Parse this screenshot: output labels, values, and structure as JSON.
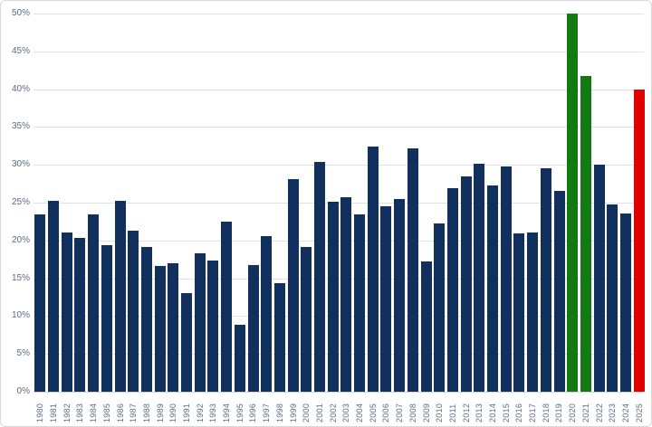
{
  "chart": {
    "background_color": "#ffffff",
    "border_color": "#d8d8d8",
    "grid_color": "#e2e2e2",
    "axis_label_color": "#5a6b7c",
    "bar_default_color": "#12305d",
    "highlight_color_positive": "#137a13",
    "highlight_color_negative": "#df0000"
  },
  "chart_data": {
    "type": "bar",
    "title": "",
    "xlabel": "",
    "ylabel": "",
    "ylim": [
      0,
      50
    ],
    "grid": true,
    "legend": false,
    "ytick_labels": [
      "0%",
      "5%",
      "10%",
      "15%",
      "20%",
      "25%",
      "30%",
      "35%",
      "40%",
      "45%",
      "50%"
    ],
    "categories": [
      "1980",
      "1981",
      "1982",
      "1983",
      "1984",
      "1985",
      "1986",
      "1987",
      "1988",
      "1989",
      "1990",
      "1991",
      "1992",
      "1993",
      "1994",
      "1995",
      "1996",
      "1997",
      "1998",
      "1999",
      "2000",
      "2001",
      "2002",
      "2003",
      "2004",
      "2005",
      "2006",
      "2007",
      "2008",
      "2009",
      "2010",
      "2011",
      "2012",
      "2013",
      "2014",
      "2015",
      "2016",
      "2017",
      "2018",
      "2019",
      "2020",
      "2021",
      "2022",
      "2023",
      "2024",
      "2025"
    ],
    "values": [
      23.4,
      25.3,
      21.0,
      20.4,
      23.4,
      19.4,
      25.2,
      21.3,
      19.1,
      16.6,
      17.0,
      13.0,
      18.3,
      17.3,
      22.5,
      8.8,
      16.7,
      20.6,
      14.4,
      28.1,
      19.1,
      30.4,
      25.1,
      25.7,
      23.5,
      32.4,
      24.5,
      25.5,
      32.2,
      17.2,
      22.2,
      26.9,
      28.5,
      30.2,
      27.3,
      29.8,
      20.9,
      21.1,
      29.6,
      26.6,
      50.0,
      41.7,
      30.0,
      24.8,
      23.6,
      40.0
    ],
    "bar_color_overrides": {
      "2020": "#137a13",
      "2021": "#137a13",
      "2025": "#df0000"
    }
  }
}
